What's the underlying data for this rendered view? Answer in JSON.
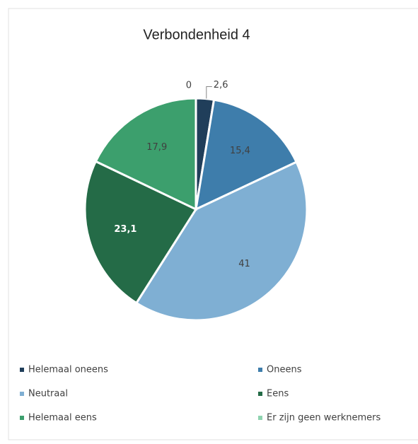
{
  "chart_data": {
    "type": "pie",
    "title": "Verbondenheid 4",
    "categories": [
      "Helemaal oneens",
      "Oneens",
      "Neutraal",
      "Eens",
      "Helemaal eens",
      "Er zijn geen werknemers"
    ],
    "values": [
      2.6,
      15.4,
      41,
      23.1,
      17.9,
      0
    ],
    "value_labels": [
      "2,6",
      "15,4",
      "41",
      "23,1",
      "17,9",
      "0"
    ],
    "colors": [
      "#203e5a",
      "#3e7dab",
      "#7fafd3",
      "#246b47",
      "#3c9f6d",
      "#8fd3b0"
    ]
  }
}
